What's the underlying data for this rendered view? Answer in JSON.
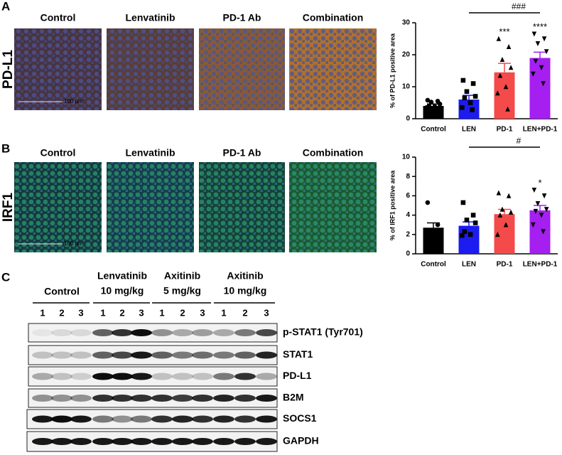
{
  "figure": {
    "panels": [
      {
        "letter": "A",
        "marker": "PD-L1",
        "headers": [
          "Control",
          "Lenvatinib",
          "PD-1 Ab",
          "Combination"
        ],
        "scale_bar": "100 µm"
      },
      {
        "letter": "B",
        "marker": "IRF1",
        "headers": [
          "Control",
          "Lenvatinib",
          "PD-1 Ab",
          "Combination"
        ],
        "scale_bar": "100 µm"
      }
    ],
    "blot": {
      "letter": "C",
      "groups": [
        {
          "lines": [
            "Control"
          ],
          "lanes": [
            "1",
            "2",
            "3"
          ]
        },
        {
          "lines": [
            "Lenvatinib",
            "10 mg/kg"
          ],
          "lanes": [
            "1",
            "2",
            "3"
          ]
        },
        {
          "lines": [
            "Axitinib",
            "5 mg/kg"
          ],
          "lanes": [
            "1",
            "2",
            "3"
          ]
        },
        {
          "lines": [
            "Axitinib",
            "10 mg/kg"
          ],
          "lanes": [
            "1",
            "2",
            "3"
          ]
        }
      ],
      "proteins": [
        "p-STAT1 (Tyr701)",
        "STAT1",
        "PD-L1",
        "B2M",
        "SOCS1",
        "GAPDH"
      ]
    }
  },
  "chart_data": [
    {
      "type": "bar",
      "ylabel": "% of PD-L1 positive area",
      "categories": [
        "Control",
        "LEN",
        "PD-1",
        "LEN+PD-1"
      ],
      "values": [
        4,
        6,
        14.5,
        19
      ],
      "errors": [
        0.6,
        1.3,
        2.8,
        1.8
      ],
      "points": [
        [
          5.8,
          5.5,
          5.2,
          4.6,
          4.0,
          3.8,
          3.5,
          3.0
        ],
        [
          12,
          11,
          8.5,
          7,
          6.5,
          5,
          3.5,
          2.8
        ],
        [
          25,
          22.5,
          18.5,
          16,
          13.5,
          10,
          8,
          3
        ],
        [
          26.5,
          25,
          23.5,
          21,
          18,
          16,
          14,
          11
        ]
      ],
      "colors": [
        "#000000",
        "#1c1cf0",
        "#f44a4a",
        "#a51ff0"
      ],
      "markers": [
        "circle",
        "square",
        "triangle",
        "triangle-down"
      ],
      "significance": [
        null,
        null,
        "***",
        "****"
      ],
      "comparison_label": "###",
      "ylim": [
        0,
        30
      ],
      "yticks": [
        0,
        10,
        20,
        30
      ]
    },
    {
      "type": "bar",
      "ylabel": "% of IRF1 positive area",
      "categories": [
        "Control",
        "LEN",
        "PD-1",
        "LEN+PD-1"
      ],
      "values": [
        2.7,
        2.9,
        4.1,
        4.5
      ],
      "errors": [
        0.5,
        0.4,
        0.5,
        0.5
      ],
      "points": [
        [
          5.3,
          3.0,
          2.4
        ],
        [
          5.3,
          4.0,
          3.5,
          3.2,
          2.3,
          2.0,
          1.9
        ],
        [
          6.3,
          6.0,
          4.6,
          4.3,
          4.0,
          3.0,
          2.0
        ],
        [
          6.6,
          6.0,
          5.2,
          4.6,
          4.4,
          4.0,
          3.0,
          2.3
        ]
      ],
      "colors": [
        "#000000",
        "#1c1cf0",
        "#f44a4a",
        "#a51ff0"
      ],
      "markers": [
        "circle",
        "square",
        "triangle",
        "triangle-down"
      ],
      "significance": [
        null,
        null,
        null,
        "*"
      ],
      "comparison_label": "#",
      "ylim": [
        0,
        10
      ],
      "yticks": [
        0,
        2,
        4,
        6,
        8,
        10
      ]
    }
  ]
}
